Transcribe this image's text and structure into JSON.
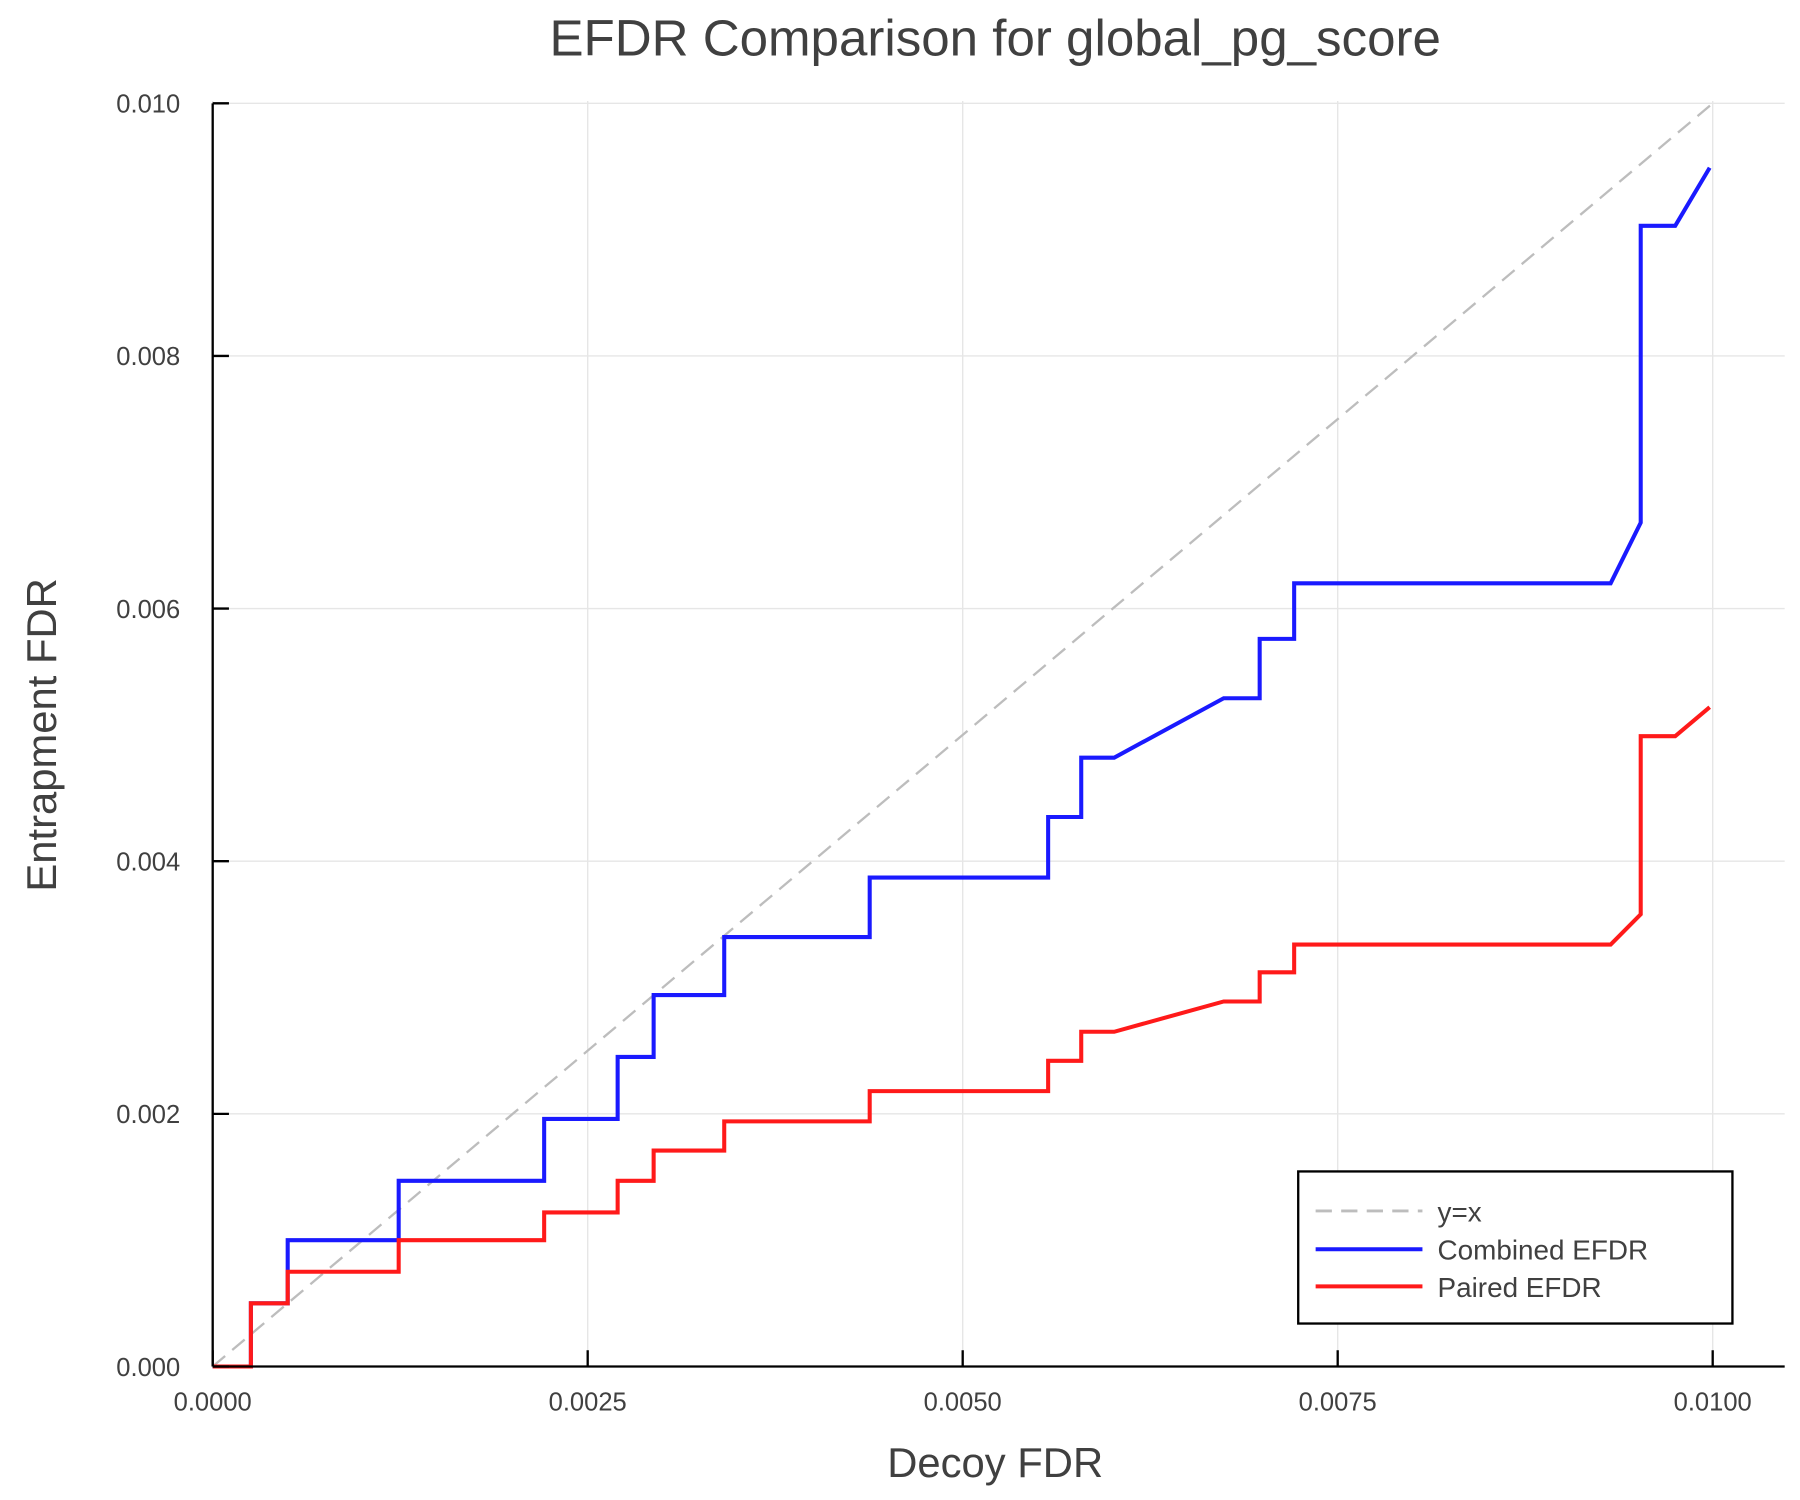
{
  "chart_data": {
    "type": "line",
    "title": "EFDR Comparison for global_pg_score",
    "xlabel": "Decoy FDR",
    "ylabel": "Entrapment FDR",
    "xlim": [
      0,
      0.0105
    ],
    "ylim": [
      0,
      0.01
    ],
    "xticks": [
      "0.0000",
      "0.0025",
      "0.0050",
      "0.0075",
      "0.0100"
    ],
    "yticks": [
      "0.000",
      "0.002",
      "0.004",
      "0.006",
      "0.008",
      "0.010"
    ],
    "grid": true,
    "legend_position": "bottom-right",
    "series": [
      {
        "name": "y=x",
        "color": "#bdbdbd",
        "style": "dashed",
        "points": [
          [
            0,
            0
          ],
          [
            0.01,
            0.01
          ]
        ]
      },
      {
        "name": "Combined EFDR",
        "color": "#1a1aff",
        "style": "solid",
        "points": [
          [
            0,
            0
          ],
          [
            0.000255,
            0
          ],
          [
            0.000255,
            0.0005
          ],
          [
            0.0005,
            0.0005
          ],
          [
            0.0005,
            0.001
          ],
          [
            0.00124,
            0.001
          ],
          [
            0.00124,
            0.00147
          ],
          [
            0.00221,
            0.00147
          ],
          [
            0.00221,
            0.00196
          ],
          [
            0.0027,
            0.00196
          ],
          [
            0.0027,
            0.00245
          ],
          [
            0.00294,
            0.00245
          ],
          [
            0.00294,
            0.00294
          ],
          [
            0.00341,
            0.00294
          ],
          [
            0.00341,
            0.0034
          ],
          [
            0.00438,
            0.0034
          ],
          [
            0.00438,
            0.00387
          ],
          [
            0.00557,
            0.00387
          ],
          [
            0.00557,
            0.00435
          ],
          [
            0.00579,
            0.00435
          ],
          [
            0.00579,
            0.00482
          ],
          [
            0.00601,
            0.00482
          ],
          [
            0.00674,
            0.00529
          ],
          [
            0.00698,
            0.00529
          ],
          [
            0.00698,
            0.00576
          ],
          [
            0.00721,
            0.00576
          ],
          [
            0.00721,
            0.0062
          ],
          [
            0.00932,
            0.0062
          ],
          [
            0.00952,
            0.00668
          ],
          [
            0.00952,
            0.00903
          ],
          [
            0.00975,
            0.00903
          ],
          [
            0.00998,
            0.00949
          ]
        ]
      },
      {
        "name": "Paired EFDR",
        "color": "#ff1a1a",
        "style": "solid",
        "points": [
          [
            0,
            0
          ],
          [
            0.000255,
            0
          ],
          [
            0.000255,
            0.0005
          ],
          [
            0.0005,
            0.0005
          ],
          [
            0.0005,
            0.00075
          ],
          [
            0.00124,
            0.00075
          ],
          [
            0.00124,
            0.001
          ],
          [
            0.00221,
            0.001
          ],
          [
            0.00221,
            0.00122
          ],
          [
            0.0027,
            0.00122
          ],
          [
            0.0027,
            0.00147
          ],
          [
            0.00294,
            0.00147
          ],
          [
            0.00294,
            0.00171
          ],
          [
            0.00341,
            0.00171
          ],
          [
            0.00341,
            0.00194
          ],
          [
            0.00438,
            0.00194
          ],
          [
            0.00438,
            0.00218
          ],
          [
            0.00557,
            0.00218
          ],
          [
            0.00557,
            0.00242
          ],
          [
            0.00579,
            0.00242
          ],
          [
            0.00579,
            0.00265
          ],
          [
            0.00601,
            0.00265
          ],
          [
            0.00674,
            0.00289
          ],
          [
            0.00698,
            0.00289
          ],
          [
            0.00698,
            0.00312
          ],
          [
            0.00721,
            0.00312
          ],
          [
            0.00721,
            0.00334
          ],
          [
            0.00932,
            0.00334
          ],
          [
            0.00952,
            0.00358
          ],
          [
            0.00952,
            0.00499
          ],
          [
            0.00975,
            0.00499
          ],
          [
            0.00998,
            0.00522
          ]
        ]
      }
    ]
  }
}
